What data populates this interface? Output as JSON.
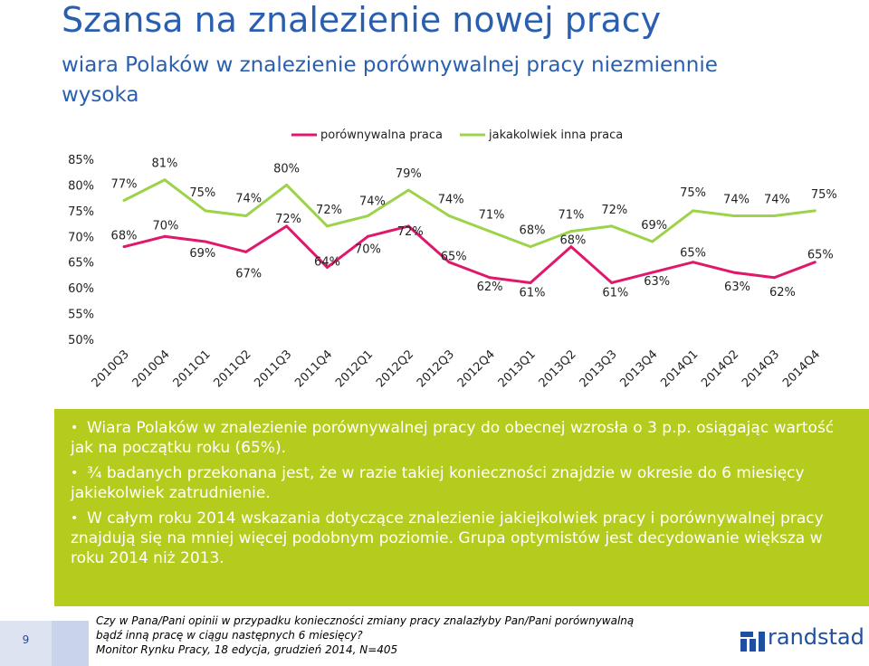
{
  "title": "Szansa na znalezienie nowej pracy",
  "subtitle": "wiara Polaków w znalezienie porównywalnej pracy niezmiennie wysoka",
  "chart_data": {
    "type": "line",
    "categories": [
      "2010Q3",
      "2010Q4",
      "2011Q1",
      "2011Q2",
      "2011Q3",
      "2011Q4",
      "2012Q1",
      "2012Q2",
      "2012Q3",
      "2012Q4",
      "2013Q1",
      "2013Q2",
      "2013Q3",
      "2013Q4",
      "2014Q1",
      "2014Q2",
      "2014Q3",
      "2014Q4"
    ],
    "series": [
      {
        "name": "porównywalna praca",
        "color": "#e0186c",
        "values": [
          68,
          70,
          69,
          67,
          72,
          64,
          70,
          72,
          65,
          62,
          61,
          68,
          61,
          63,
          65,
          63,
          62,
          65
        ],
        "labels": [
          "68%",
          "70%",
          "69%",
          "67%",
          "72%",
          "64%",
          "70%",
          "72%",
          "65%",
          "62%",
          "61%",
          "68%",
          "61%",
          "63%",
          "65%",
          "63%",
          "62%",
          "65%"
        ]
      },
      {
        "name": "jakakolwiek inna praca",
        "color": "#9cd34a",
        "values": [
          77,
          81,
          75,
          74,
          80,
          72,
          74,
          79,
          74,
          71,
          68,
          71,
          72,
          69,
          75,
          74,
          74,
          75
        ],
        "labels": [
          "77%",
          "81%",
          "75%",
          "74%",
          "80%",
          "72%",
          "74%",
          "79%",
          "74%",
          "71%",
          "68%",
          "71%",
          "72%",
          "69%",
          "75%",
          "74%",
          "74%",
          "75%"
        ]
      }
    ],
    "yticks": [
      "85%",
      "80%",
      "75%",
      "70%",
      "65%",
      "60%",
      "55%",
      "50%"
    ],
    "ytick_values": [
      85,
      80,
      75,
      70,
      65,
      60,
      55,
      50
    ],
    "ylim": [
      50,
      85
    ],
    "legend_position": "top",
    "grid": false
  },
  "bullets": [
    "Wiara Polaków w znalezienie porównywalnej pracy do obecnej wzrosła o 3 p.p. osiągając wartość jak na początku roku (65%).",
    "¾ badanych przekonana jest, że w razie takiej konieczności znajdzie w okresie do 6 miesięcy jakiekolwiek zatrudnienie.",
    "W całym roku 2014 wskazania dotyczące znalezienie jakiejkolwiek pracy i porównywalnej pracy znajdują się na mniej więcej podobnym poziomie. Grupa optymistów jest decydowanie większa w roku 2014 niż 2013."
  ],
  "bullet_symbol": "•",
  "footnote": {
    "line1": "Czy w Pana/Pani opinii w przypadku konieczności zmiany pracy znalazłyby Pan/Pani porównywalną",
    "line2": "bądź inną pracę w ciągu następnych 6 miesięcy?",
    "line3": "Monitor Rynku Pracy, 18 edycja, grudzień 2014, N=405"
  },
  "page_number": "9",
  "logo_text": "randstad",
  "colors": {
    "title": "#2a5fb0",
    "green_box": "#b5cc1e",
    "pink": "#e0186c",
    "green": "#9cd34a"
  }
}
